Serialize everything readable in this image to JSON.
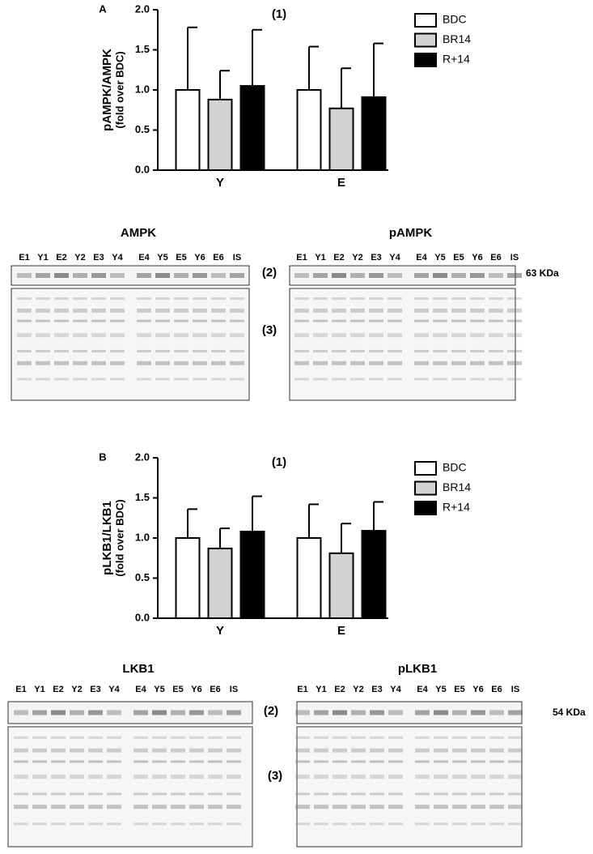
{
  "chart_data": [
    {
      "type": "bar",
      "panel": "A",
      "title": "(1)",
      "ylabel": "pAMPK/AMPK",
      "ylabel_sub": "(fold over BDC)",
      "categories": [
        "Y",
        "E"
      ],
      "series": [
        {
          "name": "BDC",
          "color": "#ffffff",
          "values": [
            1.0,
            1.0
          ],
          "errors": [
            0.78,
            0.54
          ]
        },
        {
          "name": "BR14",
          "color": "#d3d3d3",
          "values": [
            0.88,
            0.77
          ],
          "errors": [
            0.36,
            0.5
          ]
        },
        {
          "name": "R+14",
          "color": "#000000",
          "values": [
            1.05,
            0.91
          ],
          "errors": [
            0.7,
            0.67
          ]
        }
      ],
      "ylim": [
        0,
        2
      ],
      "yticks": [
        {
          "value": 0,
          "label": "0.0"
        },
        {
          "value": 0.5,
          "label": "0.5"
        },
        {
          "value": 1,
          "label": "1.0"
        },
        {
          "value": 1.5,
          "label": "1.5"
        },
        {
          "value": 2,
          "label": "2.0"
        }
      ],
      "grid": false,
      "legend": "upper right"
    },
    {
      "type": "bar",
      "panel": "B",
      "title": "(1)",
      "ylabel": "pLKB1/LKB1",
      "ylabel_sub": "(fold over BDC)",
      "categories": [
        "Y",
        "E"
      ],
      "series": [
        {
          "name": "BDC",
          "color": "#ffffff",
          "values": [
            1.0,
            1.0
          ],
          "errors": [
            0.36,
            0.42
          ]
        },
        {
          "name": "BR14",
          "color": "#d3d3d3",
          "values": [
            0.87,
            0.81
          ],
          "errors": [
            0.25,
            0.37
          ]
        },
        {
          "name": "R+14",
          "color": "#000000",
          "values": [
            1.08,
            1.09
          ],
          "errors": [
            0.44,
            0.36
          ]
        }
      ],
      "ylim": [
        0,
        2
      ],
      "yticks": [
        {
          "value": 0,
          "label": "0.0"
        },
        {
          "value": 0.5,
          "label": "0.5"
        },
        {
          "value": 1,
          "label": "1.0"
        },
        {
          "value": 1.5,
          "label": "1.5"
        },
        {
          "value": 2,
          "label": "2.0"
        }
      ],
      "grid": false,
      "legend": "upper right"
    }
  ],
  "blots": [
    {
      "left_title": "AMPK",
      "right_title": "pAMPK",
      "left_lanes": [
        "E1",
        "Y1",
        "E2",
        "Y2",
        "E3",
        "Y4",
        "E4",
        "Y5",
        "E5",
        "Y6",
        "E6",
        "IS"
      ],
      "right_lanes": [
        "E1",
        "Y1",
        "E2",
        "Y2",
        "E3",
        "Y4",
        "E4",
        "Y5",
        "E5",
        "Y6",
        "E6",
        "IS"
      ],
      "strip_label": "(2)",
      "total_label": "(3)",
      "size_label": "63 KDa"
    },
    {
      "left_title": "LKB1",
      "right_title": "pLKB1",
      "left_lanes": [
        "E1",
        "Y1",
        "E2",
        "Y2",
        "E3",
        "Y4",
        "E4",
        "Y5",
        "E5",
        "Y6",
        "E6",
        "IS"
      ],
      "right_lanes": [
        "E1",
        "Y1",
        "E2",
        "Y2",
        "E3",
        "Y4",
        "E4",
        "Y5",
        "E5",
        "Y6",
        "E6",
        "IS"
      ],
      "strip_label": "(2)",
      "total_label": "(3)",
      "size_label": "54 KDa"
    }
  ]
}
